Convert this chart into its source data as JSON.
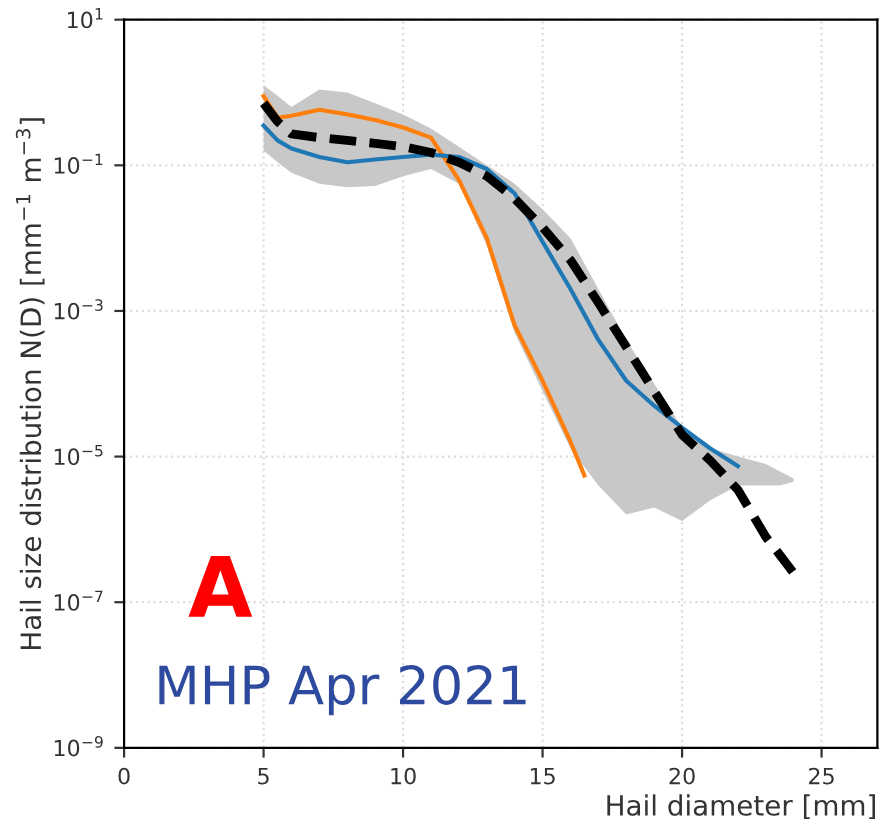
{
  "chart_data": {
    "type": "line",
    "xlabel": "Hail diameter [mm]",
    "ylabel": "Hail size distribution N(D) [mm$^{−1}$ m$^{−3}$]",
    "log": "y",
    "grid": true,
    "line_style": "solid",
    "xlim": [
      0,
      27
    ],
    "xticks": [
      0,
      5,
      10,
      15,
      20,
      25
    ],
    "ylim": [
      1e-09,
      10
    ],
    "yticks": [
      {
        "value": 1e-09,
        "label": "10$^{−9}$"
      },
      {
        "value": 1e-07,
        "label": "10$^{−7}$"
      },
      {
        "value": 1e-05,
        "label": "10$^{−5}$"
      },
      {
        "value": 0.001,
        "label": "10$^{−3}$"
      },
      {
        "value": 0.1,
        "label": "10$^{−1}$"
      },
      {
        "value": 10,
        "label": "10$^{1}$"
      }
    ],
    "annotations": [
      "A",
      "MHP Apr 2021"
    ],
    "series": [
      {
        "color": "#ff7f0e",
        "x": [
          5,
          5.5,
          6,
          7,
          8,
          9,
          10,
          11,
          12,
          13,
          14,
          15,
          16,
          16.5
        ],
        "values": [
          0.89,
          0.45,
          0.48,
          0.58,
          0.5,
          0.42,
          0.33,
          0.24,
          0.063,
          0.01,
          0.00063,
          0.00011,
          1.6e-05,
          5.5e-06
        ]
      },
      {
        "color": "#1f77b4",
        "x": [
          5,
          5.5,
          6,
          7,
          8,
          9,
          10,
          11,
          12,
          13,
          14,
          15,
          16,
          17,
          18,
          19,
          20,
          21,
          22
        ],
        "values": [
          0.35,
          0.22,
          0.17,
          0.13,
          0.11,
          0.12,
          0.13,
          0.14,
          0.13,
          0.089,
          0.041,
          0.0089,
          0.002,
          0.0004,
          0.00011,
          5e-05,
          2.5e-05,
          1.3e-05,
          7.4e-06
        ]
      },
      {
        "color": "#000000",
        "line_style": "dashed",
        "x": [
          5,
          5.5,
          6,
          7,
          8,
          9,
          10,
          11,
          12,
          13,
          14,
          15,
          16,
          17,
          18,
          19,
          20,
          21,
          22,
          23,
          23.5,
          24
        ],
        "values": [
          0.71,
          0.4,
          0.27,
          0.24,
          0.22,
          0.2,
          0.18,
          0.15,
          0.11,
          0.071,
          0.035,
          0.014,
          0.005,
          0.0013,
          0.00032,
          7.9e-05,
          2e-05,
          8.9e-06,
          3.5e-06,
          7.9e-07,
          4.5e-07,
          2.5e-07
        ],
        "upper": [
          1.26,
          0.9,
          0.63,
          1.1,
          1.0,
          0.71,
          0.5,
          0.32,
          0.18,
          0.1,
          0.056,
          0.025,
          0.01,
          0.002,
          0.0004,
          0.0001,
          2.5e-05,
          1.3e-05,
          1e-05,
          7.9e-06,
          6.3e-06,
          5e-06
        ],
        "lower": [
          0.16,
          0.11,
          0.079,
          0.056,
          0.05,
          0.052,
          0.071,
          0.089,
          0.056,
          0.0079,
          0.0005,
          7.9e-05,
          1.3e-05,
          4e-06,
          1.6e-06,
          2e-06,
          1.3e-06,
          2.5e-06,
          4e-06,
          4e-06,
          4e-06,
          4.5e-06
        ]
      }
    ]
  }
}
